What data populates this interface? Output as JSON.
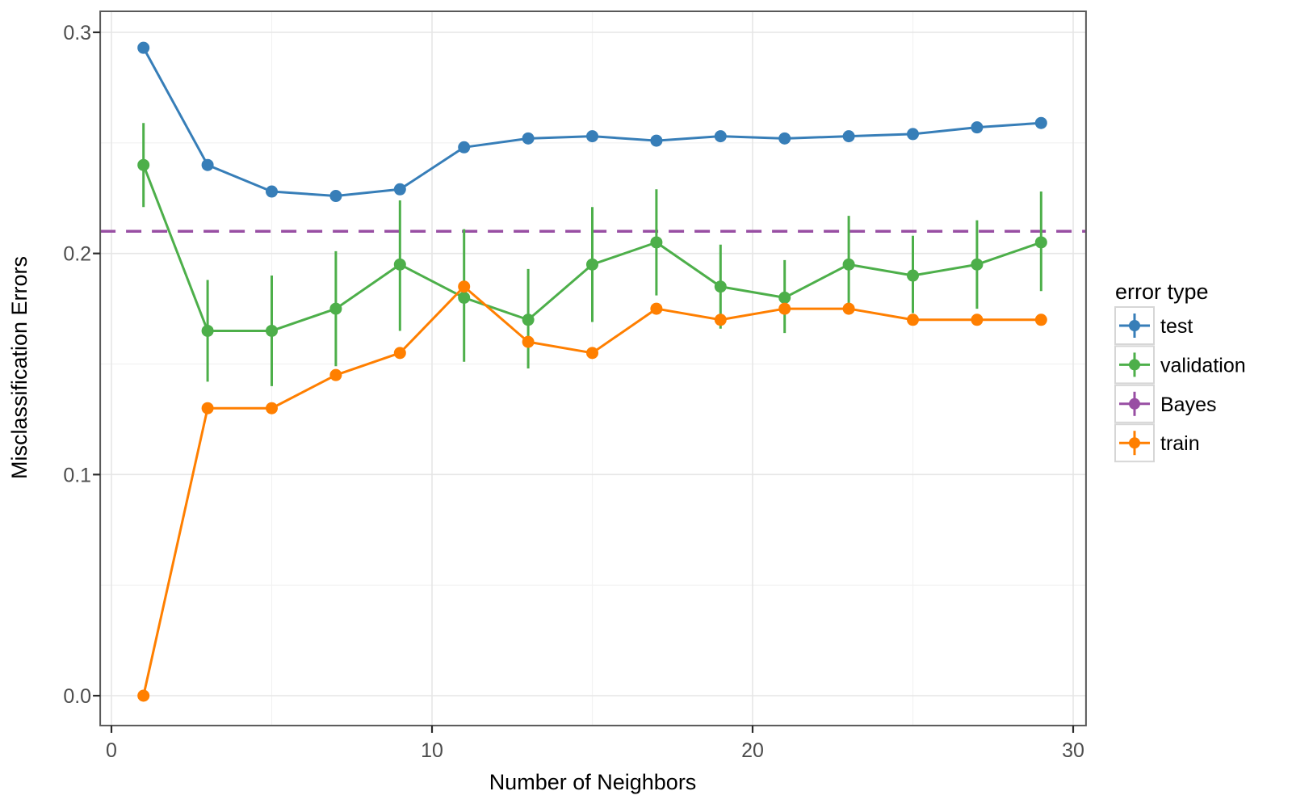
{
  "chart_data": {
    "type": "line",
    "title": "",
    "xlabel": "Number of Neighbors",
    "ylabel": "Misclassification Errors",
    "x": [
      1,
      3,
      5,
      7,
      9,
      11,
      13,
      15,
      17,
      19,
      21,
      23,
      25,
      27,
      29
    ],
    "series": [
      {
        "name": "test",
        "color": "#377EB8",
        "style": "line-points",
        "values": [
          0.293,
          0.24,
          0.228,
          0.226,
          0.229,
          0.248,
          0.252,
          0.253,
          0.251,
          0.253,
          0.252,
          0.253,
          0.254,
          0.257,
          0.259
        ]
      },
      {
        "name": "validation",
        "color": "#4DAF4A",
        "style": "line-points-errorbars",
        "values": [
          0.24,
          0.165,
          0.165,
          0.175,
          0.195,
          0.18,
          0.17,
          0.195,
          0.205,
          0.185,
          0.18,
          0.195,
          0.19,
          0.195,
          0.205
        ],
        "error_low": [
          0.221,
          0.142,
          0.14,
          0.149,
          0.165,
          0.151,
          0.148,
          0.169,
          0.181,
          0.166,
          0.164,
          0.174,
          0.173,
          0.175,
          0.183
        ],
        "error_high": [
          0.259,
          0.188,
          0.19,
          0.201,
          0.224,
          0.211,
          0.193,
          0.221,
          0.229,
          0.204,
          0.197,
          0.217,
          0.208,
          0.215,
          0.228
        ]
      },
      {
        "name": "Bayes",
        "color": "#984EA3",
        "style": "hline-dashed",
        "value": 0.21
      },
      {
        "name": "train",
        "color": "#FF7F00",
        "style": "line-points",
        "values": [
          0.0,
          0.13,
          0.13,
          0.145,
          0.155,
          0.185,
          0.16,
          0.155,
          0.175,
          0.17,
          0.175,
          0.175,
          0.17,
          0.17,
          0.17
        ]
      }
    ],
    "legend": {
      "title": "error type",
      "position": "right",
      "entries": [
        "test",
        "validation",
        "Bayes",
        "train"
      ]
    },
    "axes": {
      "x_ticks": [
        0,
        10,
        20,
        30
      ],
      "x_minor_gridlines": [
        5,
        15,
        25
      ],
      "y_ticks": [
        0.0,
        0.1,
        0.2,
        0.3
      ],
      "y_minor_gridlines": [
        0.05,
        0.15,
        0.25
      ],
      "xlim": [
        -0.35,
        30.4
      ],
      "ylim": [
        -0.0135,
        0.3095
      ],
      "grid": true
    },
    "style": {
      "grid_major_color": "#E6E6E6",
      "grid_minor_color": "#F2F2F2",
      "panel_border_color": "#595959",
      "tick_color": "#2B2B2B",
      "tick_label_color": "#4D4D4D",
      "axis_title_color": "#000000",
      "legend_box_border": "#D6D6D6",
      "legend_text_color": "#000000",
      "background": "#FFFFFF"
    }
  }
}
